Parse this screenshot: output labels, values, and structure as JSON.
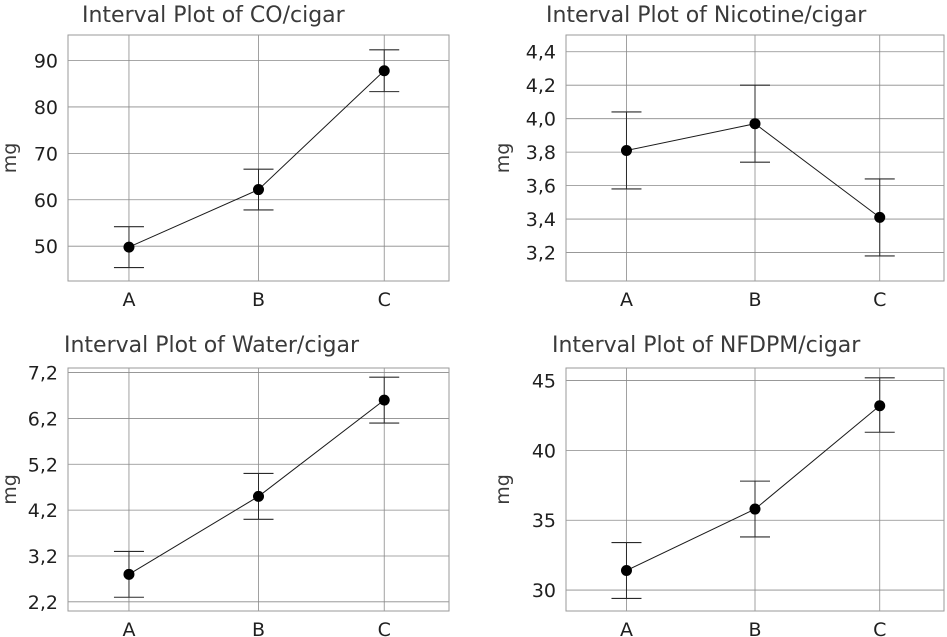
{
  "chart_data": [
    {
      "type": "interval",
      "title": "Interval Plot of CO/cigar",
      "ylabel": "mg",
      "categories": [
        "A",
        "B",
        "C"
      ],
      "means": [
        49.8,
        62.2,
        87.8
      ],
      "lower": [
        45.4,
        57.8,
        83.3
      ],
      "upper": [
        54.2,
        66.6,
        92.3
      ],
      "ylim": [
        42.5,
        95.5
      ],
      "yticks": [
        50,
        60,
        70,
        80,
        90
      ],
      "ytick_labels": [
        "50",
        "60",
        "70",
        "80",
        "90"
      ]
    },
    {
      "type": "interval",
      "title": "Interval Plot of Nicotine/cigar",
      "ylabel": "mg",
      "categories": [
        "A",
        "B",
        "C"
      ],
      "means": [
        3.81,
        3.97,
        3.41
      ],
      "lower": [
        3.58,
        3.74,
        3.18
      ],
      "upper": [
        4.04,
        4.2,
        3.64
      ],
      "ylim": [
        3.03,
        4.5
      ],
      "yticks": [
        3.2,
        3.4,
        3.6,
        3.8,
        4.0,
        4.2,
        4.4
      ],
      "ytick_labels": [
        "3,2",
        "3,4",
        "3,6",
        "3,8",
        "4,0",
        "4,2",
        "4,4"
      ]
    },
    {
      "type": "interval",
      "title": "Interval Plot of Water/cigar",
      "ylabel": "mg",
      "categories": [
        "A",
        "B",
        "C"
      ],
      "means": [
        2.8,
        4.5,
        6.6
      ],
      "lower": [
        2.3,
        4.0,
        6.1
      ],
      "upper": [
        3.3,
        5.0,
        7.1
      ],
      "ylim": [
        2.0,
        7.3
      ],
      "yticks": [
        2.2,
        3.2,
        4.2,
        5.2,
        6.2,
        7.2
      ],
      "ytick_labels": [
        "2,2",
        "3,2",
        "4,2",
        "5,2",
        "6,2",
        "7,2"
      ]
    },
    {
      "type": "interval",
      "title": "Interval Plot of NFDPM/cigar",
      "ylabel": "mg",
      "categories": [
        "A",
        "B",
        "C"
      ],
      "means": [
        31.4,
        35.8,
        43.2
      ],
      "lower": [
        29.4,
        33.8,
        41.3
      ],
      "upper": [
        33.4,
        37.8,
        45.2
      ],
      "ylim": [
        28.5,
        45.9
      ],
      "yticks": [
        30,
        35,
        40,
        45
      ],
      "ytick_labels": [
        "30",
        "35",
        "40",
        "45"
      ]
    }
  ]
}
